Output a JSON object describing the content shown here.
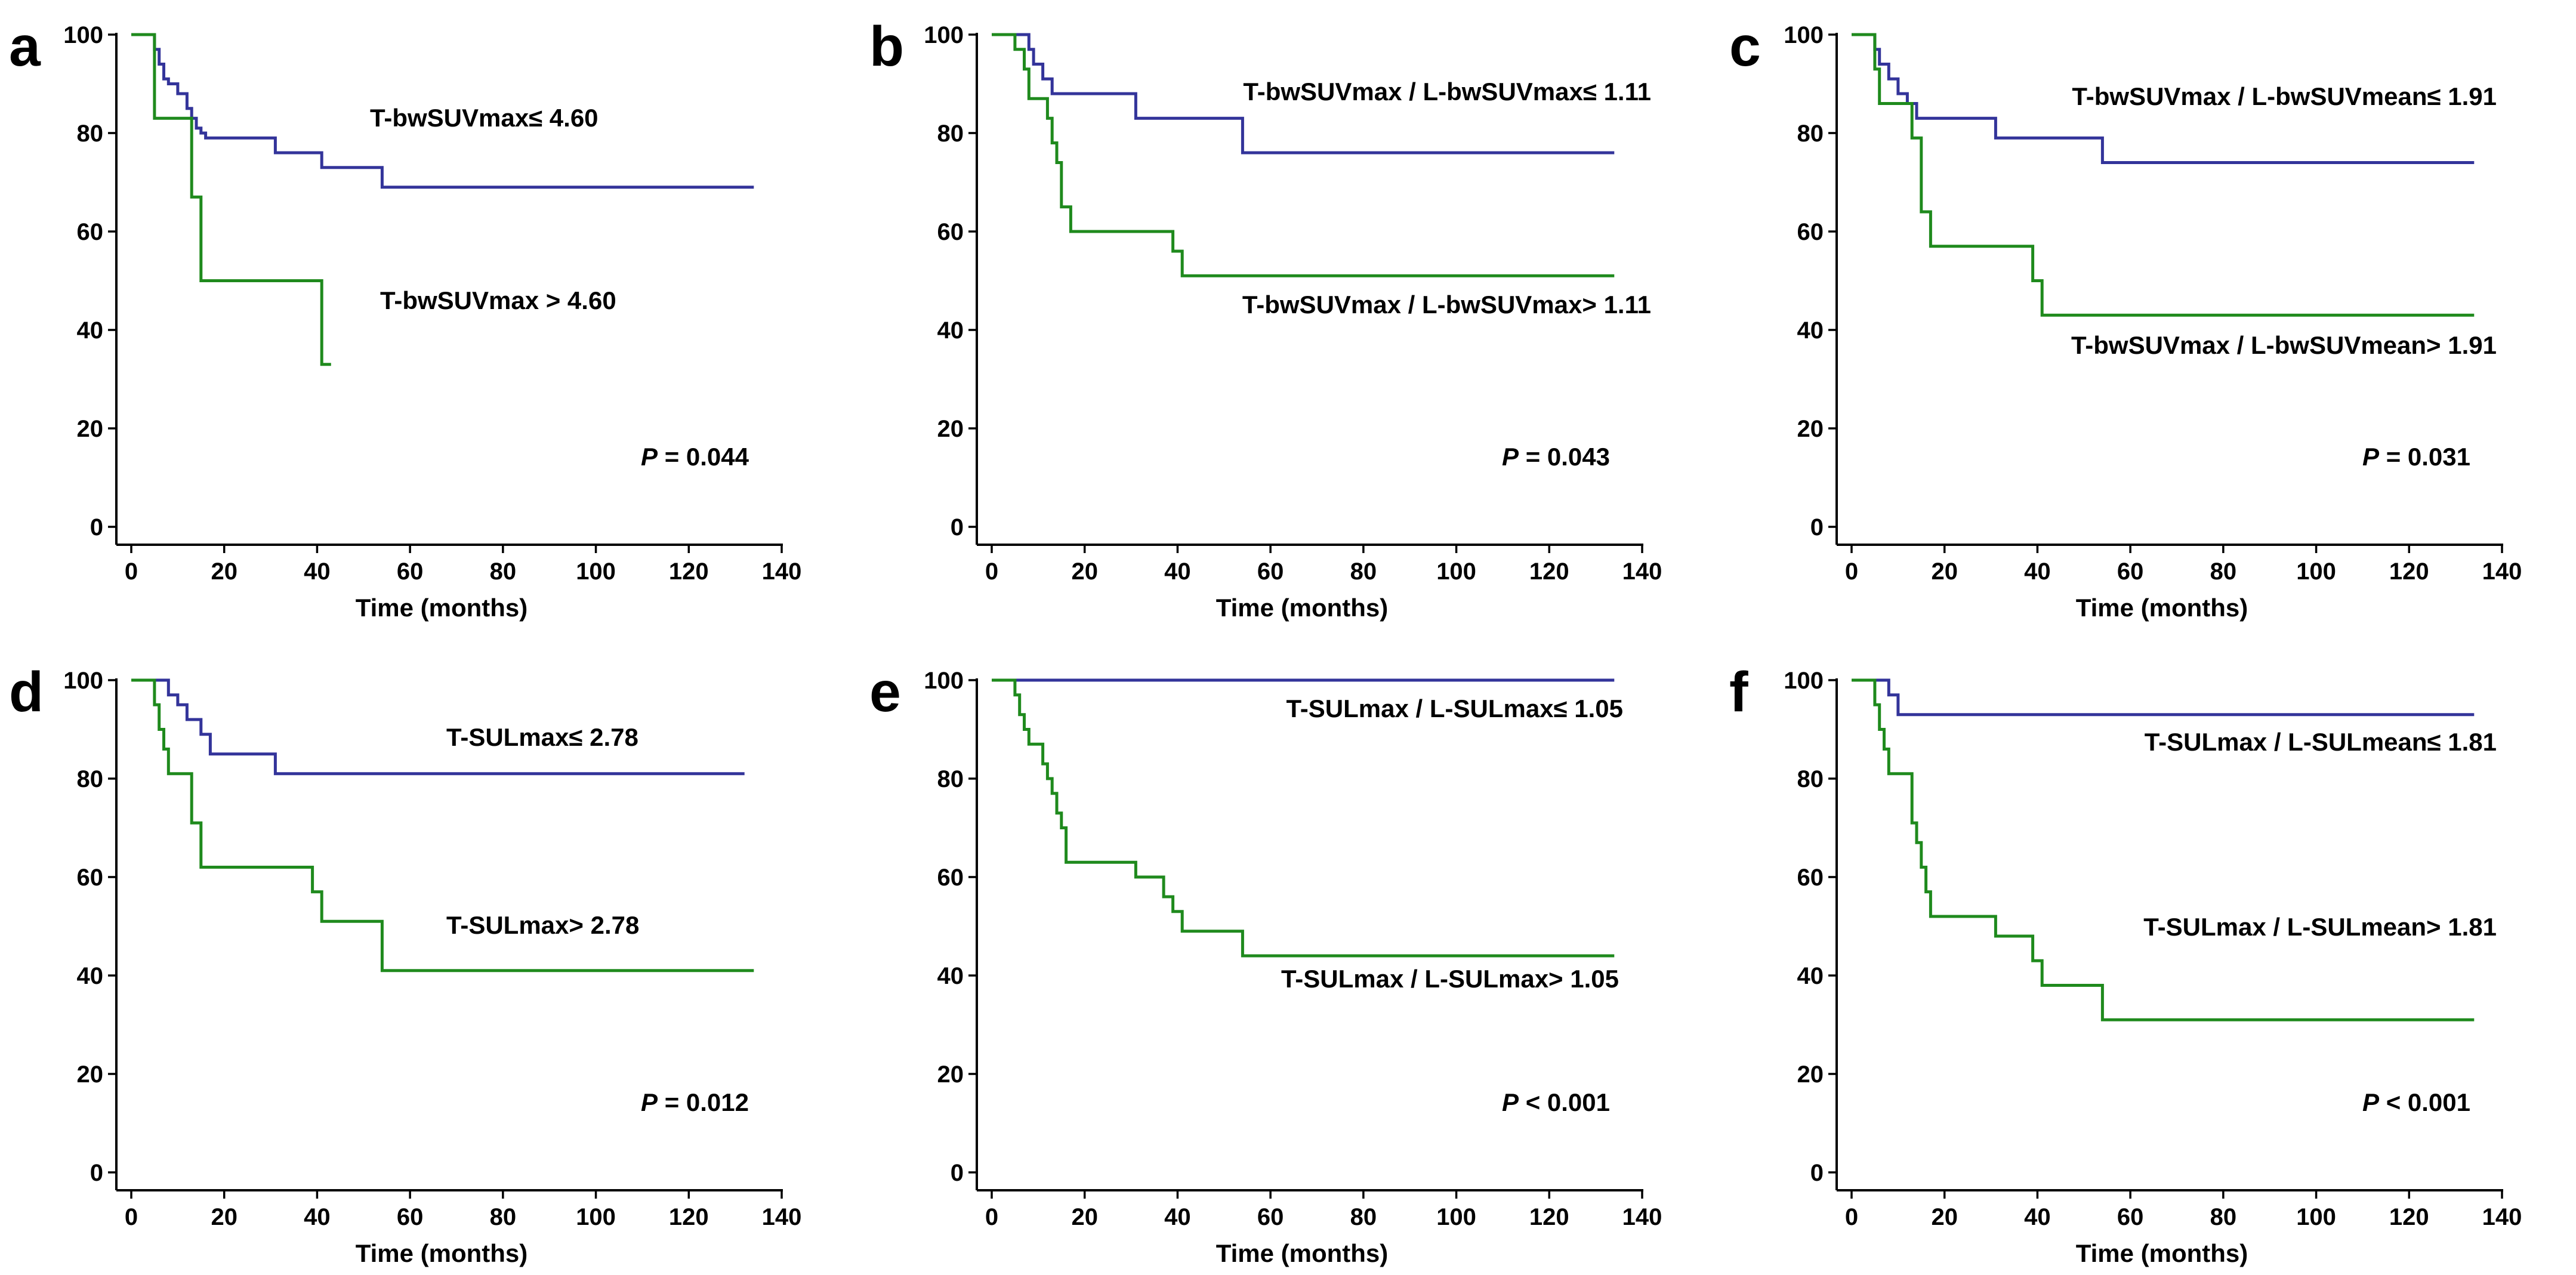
{
  "chart_data": [
    {
      "type": "line",
      "panel": "a",
      "xlabel": "Time (months)",
      "ylabel": "",
      "xlim": [
        0,
        140
      ],
      "ylim": [
        0,
        100
      ],
      "xticks": [
        0,
        20,
        40,
        60,
        80,
        100,
        120,
        140
      ],
      "yticks": [
        0,
        20,
        40,
        60,
        80,
        100
      ],
      "p_label": "P",
      "p_value": "= 0.044",
      "series": [
        {
          "name": "T-bwSUVmax≤ 4.60",
          "color": "#33349a",
          "x": [
            0,
            5,
            6,
            7,
            8,
            10,
            12,
            13,
            14,
            15,
            16,
            31,
            41,
            54,
            134
          ],
          "y": [
            100,
            97,
            94,
            91,
            90,
            88,
            85,
            83,
            81,
            80,
            79,
            76,
            73,
            69,
            69
          ]
        },
        {
          "name": "T-bwSUVmax > 4.60",
          "color": "#1f8a1d",
          "x": [
            0,
            5,
            13,
            15,
            41,
            43
          ],
          "y": [
            100,
            83,
            67,
            50,
            33,
            33
          ]
        }
      ]
    },
    {
      "type": "line",
      "panel": "b",
      "xlabel": "Time (months)",
      "ylabel": "",
      "xlim": [
        0,
        140
      ],
      "ylim": [
        0,
        100
      ],
      "xticks": [
        0,
        20,
        40,
        60,
        80,
        100,
        120,
        140
      ],
      "yticks": [
        0,
        20,
        40,
        60,
        80,
        100
      ],
      "p_label": "P",
      "p_value": "= 0.043",
      "series": [
        {
          "name": "T-bwSUVmax / L-bwSUVmax≤ 1.11",
          "color": "#33349a",
          "x": [
            0,
            8,
            9,
            11,
            13,
            31,
            54,
            134
          ],
          "y": [
            100,
            97,
            94,
            91,
            88,
            83,
            76,
            76
          ]
        },
        {
          "name": "T-bwSUVmax / L-bwSUVmax> 1.11",
          "color": "#1f8a1d",
          "x": [
            0,
            5,
            7,
            8,
            12,
            13,
            14,
            15,
            17,
            39,
            41,
            134
          ],
          "y": [
            100,
            97,
            93,
            87,
            83,
            78,
            74,
            65,
            60,
            56,
            51,
            51
          ]
        }
      ]
    },
    {
      "type": "line",
      "panel": "c",
      "xlabel": "Time (months)",
      "ylabel": "",
      "xlim": [
        0,
        140
      ],
      "ylim": [
        0,
        100
      ],
      "xticks": [
        0,
        20,
        40,
        60,
        80,
        100,
        120,
        140
      ],
      "yticks": [
        0,
        20,
        40,
        60,
        80,
        100
      ],
      "p_label": "P",
      "p_value": "= 0.031",
      "series": [
        {
          "name": "T-bwSUVmax / L-bwSUVmean≤ 1.91",
          "color": "#33349a",
          "x": [
            0,
            5,
            6,
            8,
            10,
            12,
            14,
            31,
            54,
            134
          ],
          "y": [
            100,
            97,
            94,
            91,
            88,
            86,
            83,
            79,
            74,
            74
          ]
        },
        {
          "name": "T-bwSUVmax / L-bwSUVmean> 1.91",
          "color": "#1f8a1d",
          "x": [
            0,
            5,
            6,
            13,
            15,
            17,
            39,
            41,
            134
          ],
          "y": [
            100,
            93,
            86,
            79,
            64,
            57,
            50,
            43,
            43
          ]
        }
      ]
    },
    {
      "type": "line",
      "panel": "d",
      "xlabel": "Time (months)",
      "ylabel": "",
      "xlim": [
        0,
        140
      ],
      "ylim": [
        0,
        100
      ],
      "xticks": [
        0,
        20,
        40,
        60,
        80,
        100,
        120,
        140
      ],
      "yticks": [
        0,
        20,
        40,
        60,
        80,
        100
      ],
      "p_label": "P",
      "p_value": "= 0.012",
      "series": [
        {
          "name": "T-SULmax≤ 2.78",
          "color": "#33349a",
          "x": [
            0,
            8,
            10,
            12,
            15,
            17,
            31,
            132
          ],
          "y": [
            100,
            97,
            95,
            92,
            89,
            85,
            81,
            81
          ]
        },
        {
          "name": "T-SULmax> 2.78",
          "color": "#1f8a1d",
          "x": [
            0,
            5,
            6,
            7,
            8,
            13,
            15,
            39,
            41,
            54,
            134
          ],
          "y": [
            100,
            95,
            90,
            86,
            81,
            71,
            62,
            57,
            51,
            41,
            41
          ]
        }
      ]
    },
    {
      "type": "line",
      "panel": "e",
      "xlabel": "Time (months)",
      "ylabel": "",
      "xlim": [
        0,
        140
      ],
      "ylim": [
        0,
        100
      ],
      "xticks": [
        0,
        20,
        40,
        60,
        80,
        100,
        120,
        140
      ],
      "yticks": [
        0,
        20,
        40,
        60,
        80,
        100
      ],
      "p_label": "P",
      "p_value": "< 0.001",
      "series": [
        {
          "name": "T-SULmax / L-SULmax≤ 1.05",
          "color": "#33349a",
          "x": [
            0,
            134
          ],
          "y": [
            100,
            100
          ]
        },
        {
          "name": "T-SULmax / L-SULmax> 1.05",
          "color": "#1f8a1d",
          "x": [
            0,
            5,
            6,
            7,
            8,
            11,
            12,
            13,
            14,
            15,
            16,
            31,
            37,
            39,
            41,
            54,
            134
          ],
          "y": [
            100,
            97,
            93,
            90,
            87,
            83,
            80,
            77,
            73,
            70,
            63,
            60,
            56,
            53,
            49,
            44,
            44
          ]
        }
      ]
    },
    {
      "type": "line",
      "panel": "f",
      "xlabel": "Time (months)",
      "ylabel": "",
      "xlim": [
        0,
        140
      ],
      "ylim": [
        0,
        100
      ],
      "xticks": [
        0,
        20,
        40,
        60,
        80,
        100,
        120,
        140
      ],
      "yticks": [
        0,
        20,
        40,
        60,
        80,
        100
      ],
      "p_label": "P",
      "p_value": "< 0.001",
      "series": [
        {
          "name": "T-SULmax / L-SULmean≤ 1.81",
          "color": "#33349a",
          "x": [
            0,
            8,
            10,
            134
          ],
          "y": [
            100,
            97,
            93,
            93
          ]
        },
        {
          "name": "T-SULmax / L-SULmean> 1.81",
          "color": "#1f8a1d",
          "x": [
            0,
            5,
            6,
            7,
            8,
            13,
            14,
            15,
            16,
            17,
            31,
            39,
            41,
            54,
            134
          ],
          "y": [
            100,
            95,
            90,
            86,
            81,
            71,
            67,
            62,
            57,
            52,
            48,
            43,
            38,
            31,
            31
          ]
        }
      ]
    }
  ]
}
